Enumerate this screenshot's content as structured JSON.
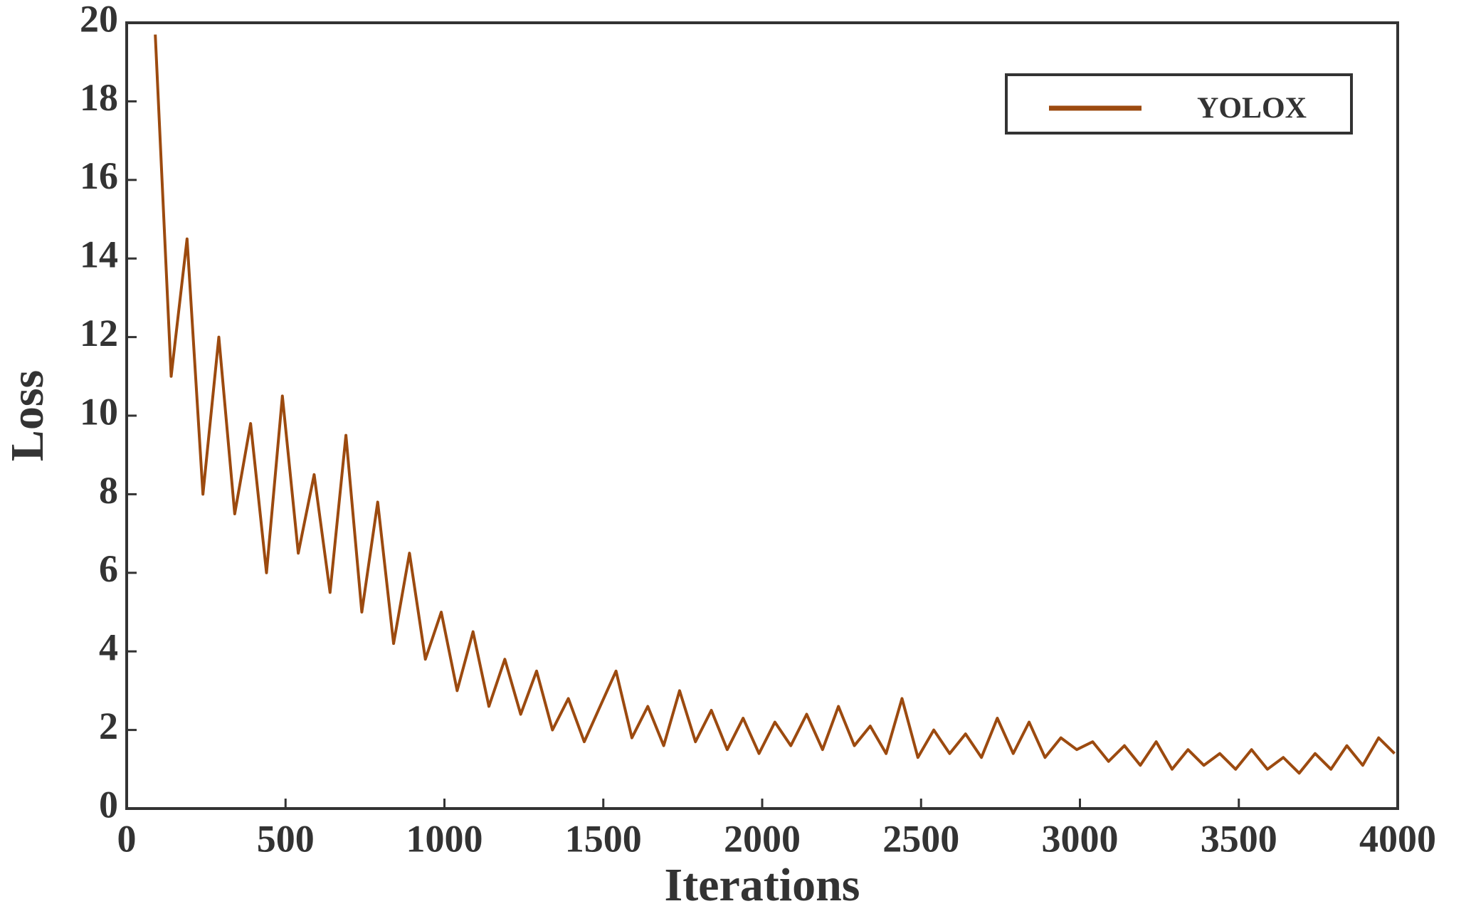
{
  "chart_data": {
    "type": "line",
    "x_label": "Iterations",
    "y_label": "Loss",
    "xlim": [
      0,
      4000
    ],
    "ylim": [
      0,
      20
    ],
    "xticks": [
      0,
      500,
      1000,
      1500,
      2000,
      2500,
      3000,
      3500,
      4000
    ],
    "yticks": [
      0,
      2,
      4,
      6,
      8,
      10,
      12,
      14,
      16,
      18,
      20
    ],
    "grid": false,
    "legend": "upper right",
    "x": [
      90,
      140,
      190,
      240,
      290,
      340,
      390,
      440,
      490,
      540,
      590,
      640,
      690,
      740,
      790,
      840,
      890,
      940,
      990,
      1040,
      1090,
      1140,
      1190,
      1240,
      1290,
      1340,
      1390,
      1440,
      1490,
      1540,
      1590,
      1640,
      1690,
      1740,
      1790,
      1840,
      1890,
      1940,
      1990,
      2040,
      2090,
      2140,
      2190,
      2240,
      2290,
      2340,
      2390,
      2440,
      2490,
      2540,
      2590,
      2640,
      2690,
      2740,
      2790,
      2840,
      2890,
      2940,
      2990,
      3040,
      3090,
      3140,
      3190,
      3240,
      3290,
      3340,
      3390,
      3440,
      3490,
      3540,
      3590,
      3640,
      3690,
      3740,
      3790,
      3840,
      3890,
      3940,
      3990
    ],
    "series": [
      {
        "name": "YOLOX",
        "color": "#9c4a0f",
        "values": [
          19.7,
          11.0,
          14.5,
          8.0,
          12.0,
          7.5,
          9.8,
          6.0,
          10.5,
          6.5,
          8.5,
          5.5,
          9.5,
          5.0,
          7.8,
          4.2,
          6.5,
          3.8,
          5.0,
          3.0,
          4.5,
          2.6,
          3.8,
          2.4,
          3.5,
          2.0,
          2.8,
          1.7,
          2.6,
          3.5,
          1.8,
          2.6,
          1.6,
          3.0,
          1.7,
          2.5,
          1.5,
          2.3,
          1.4,
          2.2,
          1.6,
          2.4,
          1.5,
          2.6,
          1.6,
          2.1,
          1.4,
          2.8,
          1.3,
          2.0,
          1.4,
          1.9,
          1.3,
          2.3,
          1.4,
          2.2,
          1.3,
          1.8,
          1.5,
          1.7,
          1.2,
          1.6,
          1.1,
          1.7,
          1.0,
          1.5,
          1.1,
          1.4,
          1.0,
          1.5,
          1.0,
          1.3,
          0.9,
          1.4,
          1.0,
          1.6,
          1.1,
          1.8,
          1.4
        ]
      }
    ]
  }
}
